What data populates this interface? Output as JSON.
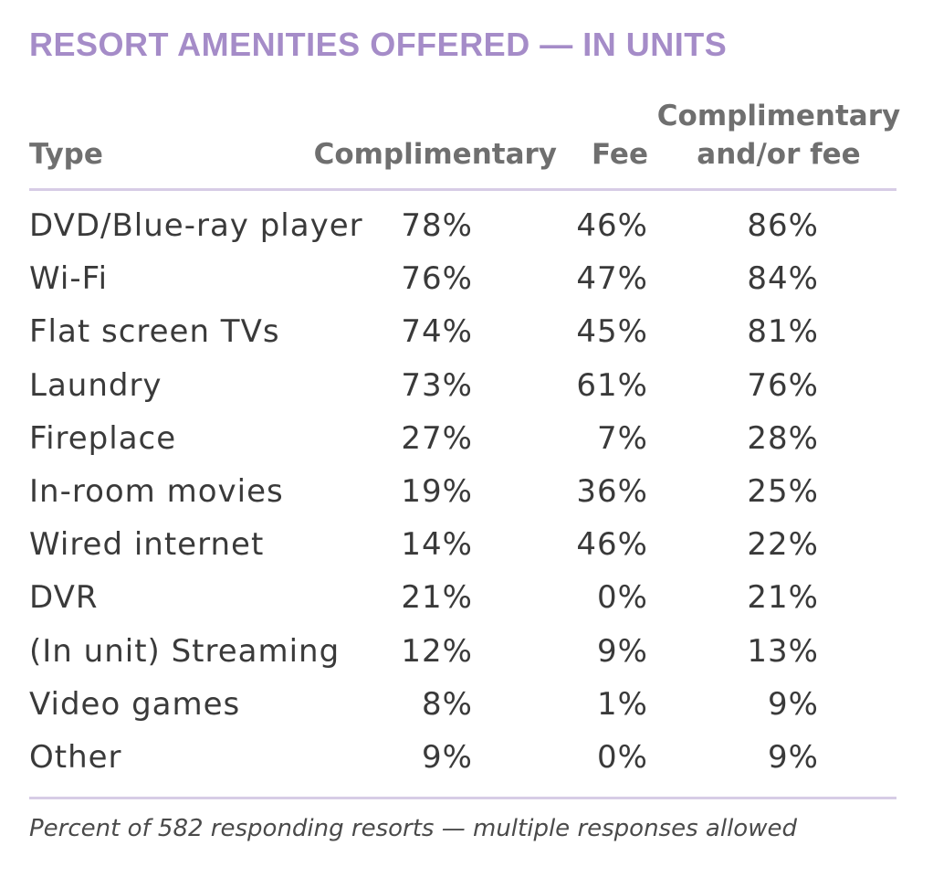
{
  "chart_data": {
    "type": "table",
    "title": "RESORT AMENITIES OFFERED — IN UNITS",
    "columns": [
      "Type",
      "Complimentary",
      "Fee",
      "Complimentary and/or fee"
    ],
    "headers": {
      "type": "Type",
      "complimentary": "Complimentary",
      "fee": "Fee",
      "both": "Complimentary and/or fee"
    },
    "rows": [
      {
        "type": "DVD/Blue-ray player",
        "complimentary": "78%",
        "fee": "46%",
        "both": "86%"
      },
      {
        "type": "Wi-Fi",
        "complimentary": "76%",
        "fee": "47%",
        "both": "84%"
      },
      {
        "type": "Flat screen TVs",
        "complimentary": "74%",
        "fee": "45%",
        "both": "81%"
      },
      {
        "type": "Laundry",
        "complimentary": "73%",
        "fee": "61%",
        "both": "76%"
      },
      {
        "type": "Fireplace",
        "complimentary": "27%",
        "fee": "7%",
        "both": "28%"
      },
      {
        "type": "In-room movies",
        "complimentary": "19%",
        "fee": "36%",
        "both": "25%"
      },
      {
        "type": "Wired internet",
        "complimentary": "14%",
        "fee": "46%",
        "both": "22%"
      },
      {
        "type": "DVR",
        "complimentary": "21%",
        "fee": "0%",
        "both": "21%"
      },
      {
        "type": "(In unit) Streaming",
        "complimentary": "12%",
        "fee": "9%",
        "both": "13%"
      },
      {
        "type": "Video games",
        "complimentary": "8%",
        "fee": "1%",
        "both": "9%"
      },
      {
        "type": "Other",
        "complimentary": "9%",
        "fee": "0%",
        "both": "9%"
      }
    ],
    "footnote": "Percent of 582 responding resorts — multiple responses allowed"
  },
  "colors": {
    "title": "#a58cc8",
    "rule": "#d7cce6",
    "header_text": "#6f6f6f",
    "body_text": "#3a3a3a"
  }
}
